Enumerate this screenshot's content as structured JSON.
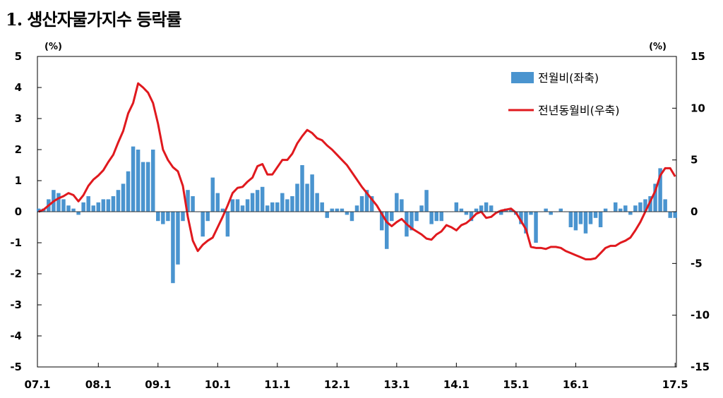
{
  "title": "1. 생산자물가지수 등락률",
  "colors": {
    "bar": "#4a94cf",
    "line": "#e0191e",
    "axis": "#000000"
  },
  "chart_data": {
    "type": "bar+line",
    "title": "1. 생산자물가지수 등락률",
    "left_axis": {
      "unit": "(%)",
      "range": [
        -5,
        5
      ],
      "ticks": [
        5,
        4,
        3,
        2,
        1,
        0,
        -1,
        -2,
        -3,
        -4,
        -5
      ]
    },
    "right_axis": {
      "unit": "(%)",
      "range": [
        -15,
        15
      ],
      "ticks": [
        15,
        10,
        5,
        0,
        -5,
        -10,
        -15
      ]
    },
    "x_tick_labels": [
      "07.1",
      "08.1",
      "09.1",
      "10.1",
      "11.1",
      "12.1",
      "13.1",
      "14.1",
      "15.1",
      "16.1",
      "17.5"
    ],
    "x_start": "2007-01",
    "x_end": "2017-05",
    "legend_position": "top-right",
    "series": [
      {
        "name": "전월비(좌축)",
        "type": "bar",
        "axis": "left",
        "values": [
          0.1,
          0.1,
          0.4,
          0.7,
          0.6,
          0.4,
          0.2,
          0.1,
          -0.1,
          0.3,
          0.5,
          0.2,
          0.3,
          0.4,
          0.4,
          0.5,
          0.7,
          0.9,
          1.3,
          2.1,
          2.0,
          1.6,
          1.6,
          2.0,
          -0.3,
          -0.4,
          -0.3,
          -2.3,
          -1.7,
          -0.3,
          0.7,
          0.5,
          0.0,
          -0.8,
          -0.3,
          1.1,
          0.6,
          0.1,
          -0.8,
          0.4,
          0.4,
          0.2,
          0.4,
          0.6,
          0.7,
          0.8,
          0.2,
          0.3,
          0.3,
          0.6,
          0.4,
          0.5,
          0.9,
          1.5,
          0.9,
          1.2,
          0.6,
          0.3,
          -0.2,
          0.1,
          0.1,
          0.1,
          -0.1,
          -0.3,
          0.2,
          0.5,
          0.7,
          0.5,
          0.0,
          -0.6,
          -1.2,
          -0.3,
          0.6,
          0.4,
          -0.8,
          -0.6,
          -0.3,
          0.2,
          0.7,
          -0.4,
          -0.3,
          -0.3,
          0.0,
          0.0,
          0.3,
          0.1,
          -0.1,
          -0.3,
          0.1,
          0.2,
          0.3,
          0.2,
          0.0,
          -0.1,
          0.1,
          0.1,
          -0.1,
          -0.4,
          -0.7,
          -0.1,
          -1.0,
          0.0,
          0.1,
          -0.1,
          0.0,
          0.1,
          0.0,
          -0.5,
          -0.6,
          -0.4,
          -0.7,
          -0.4,
          -0.2,
          -0.5,
          0.1,
          0.0,
          0.3,
          0.1,
          0.2,
          -0.1,
          0.2,
          0.3,
          0.4,
          0.5,
          0.9,
          1.4,
          0.4,
          -0.2,
          -0.2
        ]
      },
      {
        "name": "전년동월비(우축)",
        "type": "line",
        "axis": "right",
        "values": [
          0.0,
          0.2,
          0.6,
          1.0,
          1.3,
          1.5,
          1.8,
          1.6,
          1.0,
          1.6,
          2.5,
          3.1,
          3.5,
          4.0,
          4.8,
          5.5,
          6.7,
          7.8,
          9.5,
          10.5,
          12.4,
          12.0,
          11.5,
          10.5,
          8.5,
          6.0,
          5.0,
          4.3,
          3.9,
          2.5,
          -0.5,
          -2.8,
          -3.8,
          -3.2,
          -2.8,
          -2.5,
          -1.5,
          -0.5,
          0.6,
          1.8,
          2.3,
          2.4,
          2.9,
          3.3,
          4.4,
          4.6,
          3.6,
          3.6,
          4.3,
          5.0,
          5.0,
          5.6,
          6.6,
          7.3,
          7.9,
          7.6,
          7.1,
          6.9,
          6.4,
          6.0,
          5.5,
          5.0,
          4.5,
          3.8,
          3.1,
          2.4,
          1.8,
          1.2,
          0.6,
          -0.2,
          -1.0,
          -1.4,
          -1.0,
          -0.7,
          -1.2,
          -1.6,
          -1.9,
          -2.2,
          -2.6,
          -2.7,
          -2.2,
          -1.9,
          -1.3,
          -1.5,
          -1.8,
          -1.3,
          -1.1,
          -0.7,
          -0.2,
          0.0,
          -0.6,
          -0.5,
          -0.1,
          0.1,
          0.2,
          0.3,
          -0.1,
          -0.9,
          -1.7,
          -3.4,
          -3.5,
          -3.5,
          -3.6,
          -3.4,
          -3.4,
          -3.5,
          -3.8,
          -4.0,
          -4.2,
          -4.4,
          -4.6,
          -4.6,
          -4.5,
          -4.0,
          -3.5,
          -3.3,
          -3.3,
          -3.0,
          -2.8,
          -2.5,
          -1.8,
          -1.0,
          0.0,
          1.0,
          2.0,
          3.5,
          4.2,
          4.2,
          3.4
        ]
      }
    ]
  }
}
